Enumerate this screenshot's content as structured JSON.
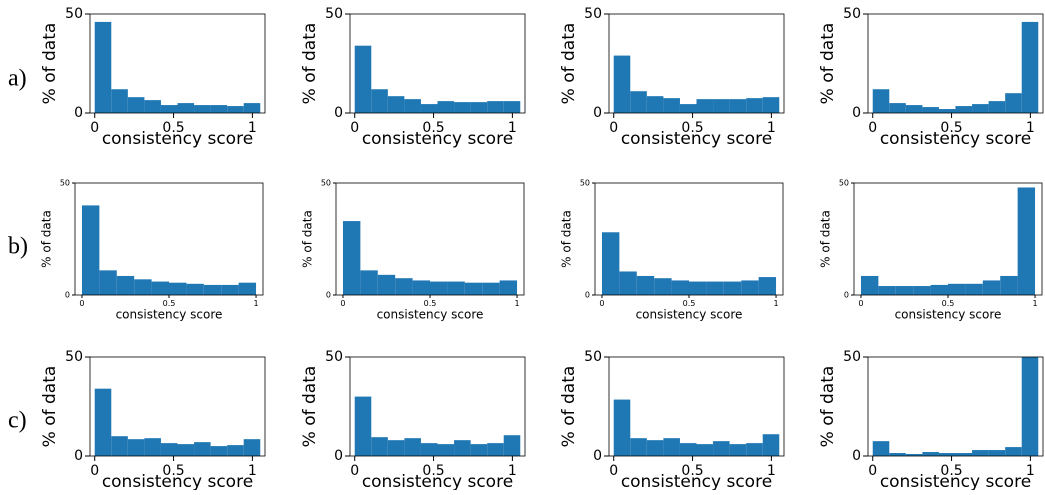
{
  "row_labels": [
    "a)",
    "b)",
    "c)"
  ],
  "chart_data": [
    {
      "type": "histogram",
      "bins": [
        0,
        0.105,
        0.21,
        0.315,
        0.42,
        0.525,
        0.63,
        0.735,
        0.84,
        0.945,
        1.05
      ],
      "values": [
        46,
        12,
        8,
        6.5,
        4,
        5,
        4,
        4,
        3.5,
        5
      ],
      "color": "#1f77b4",
      "xlim": [
        -0.03,
        1.08
      ],
      "ylim": [
        0,
        50
      ],
      "xticks": [
        0,
        0.5,
        1
      ],
      "yticks": [
        0,
        50
      ],
      "xlabel": "consistency score",
      "ylabel": "% of data"
    },
    {
      "type": "histogram",
      "bins": [
        0,
        0.105,
        0.21,
        0.315,
        0.42,
        0.525,
        0.63,
        0.735,
        0.84,
        0.945,
        1.05
      ],
      "values": [
        34,
        12,
        8.5,
        7,
        4.5,
        6,
        5.5,
        5.5,
        6,
        6
      ],
      "color": "#1f77b4",
      "xlim": [
        -0.03,
        1.08
      ],
      "ylim": [
        0,
        50
      ],
      "xticks": [
        0,
        0.5,
        1
      ],
      "yticks": [
        0,
        50
      ],
      "xlabel": "consistency score",
      "ylabel": "% of data"
    },
    {
      "type": "histogram",
      "bins": [
        0,
        0.105,
        0.21,
        0.315,
        0.42,
        0.525,
        0.63,
        0.735,
        0.84,
        0.945,
        1.05
      ],
      "values": [
        29,
        11,
        8.5,
        7.5,
        4.5,
        7,
        7,
        7,
        7.5,
        8
      ],
      "color": "#1f77b4",
      "xlim": [
        -0.03,
        1.08
      ],
      "ylim": [
        0,
        50
      ],
      "xticks": [
        0,
        0.5,
        1
      ],
      "yticks": [
        0,
        50
      ],
      "xlabel": "consistency score",
      "ylabel": "% of data"
    },
    {
      "type": "histogram",
      "bins": [
        0,
        0.105,
        0.21,
        0.315,
        0.42,
        0.525,
        0.63,
        0.735,
        0.84,
        0.945,
        1.05
      ],
      "values": [
        12,
        5,
        4,
        3,
        2,
        3.5,
        4.5,
        6,
        10,
        46
      ],
      "color": "#1f77b4",
      "xlim": [
        -0.03,
        1.08
      ],
      "ylim": [
        0,
        50
      ],
      "xticks": [
        0,
        0.5,
        1
      ],
      "yticks": [
        0,
        50
      ],
      "xlabel": "consistency score",
      "ylabel": "% of data"
    },
    {
      "type": "histogram",
      "bins": [
        0,
        0.1,
        0.2,
        0.3,
        0.4,
        0.5,
        0.6,
        0.7,
        0.8,
        0.9,
        1
      ],
      "values": [
        40,
        11,
        8.5,
        7,
        6,
        5.5,
        5,
        4.5,
        4.5,
        5.5
      ],
      "color": "#1f77b4",
      "xlim": [
        -0.04,
        1.04
      ],
      "ylim": [
        0,
        50
      ],
      "xticks": [
        0,
        0.5,
        1
      ],
      "yticks": [
        0,
        50
      ],
      "xlabel": "consistency score",
      "ylabel": "% of data"
    },
    {
      "type": "histogram",
      "bins": [
        0,
        0.1,
        0.2,
        0.3,
        0.4,
        0.5,
        0.6,
        0.7,
        0.8,
        0.9,
        1
      ],
      "values": [
        33,
        11,
        9,
        7.5,
        6.5,
        6,
        6,
        5.5,
        5.5,
        6.5
      ],
      "color": "#1f77b4",
      "xlim": [
        -0.04,
        1.04
      ],
      "ylim": [
        0,
        50
      ],
      "xticks": [
        0,
        0.5,
        1
      ],
      "yticks": [
        0,
        50
      ],
      "xlabel": "consistency score",
      "ylabel": "% of data"
    },
    {
      "type": "histogram",
      "bins": [
        0,
        0.1,
        0.2,
        0.3,
        0.4,
        0.5,
        0.6,
        0.7,
        0.8,
        0.9,
        1
      ],
      "values": [
        28,
        10.5,
        8.5,
        7.5,
        6.5,
        6,
        6,
        6,
        6.5,
        8
      ],
      "color": "#1f77b4",
      "xlim": [
        -0.04,
        1.04
      ],
      "ylim": [
        0,
        50
      ],
      "xticks": [
        0,
        0.5,
        1
      ],
      "yticks": [
        0,
        50
      ],
      "xlabel": "consistency score",
      "ylabel": "% of data"
    },
    {
      "type": "histogram",
      "bins": [
        0,
        0.1,
        0.2,
        0.3,
        0.4,
        0.5,
        0.6,
        0.7,
        0.8,
        0.9,
        1
      ],
      "values": [
        8.5,
        4,
        4,
        4,
        4.5,
        5,
        5,
        6.5,
        8.5,
        48
      ],
      "color": "#1f77b4",
      "xlim": [
        -0.04,
        1.04
      ],
      "ylim": [
        0,
        50
      ],
      "xticks": [
        0,
        0.5,
        1
      ],
      "yticks": [
        0,
        50
      ],
      "xlabel": "consistency score",
      "ylabel": "% of data"
    },
    {
      "type": "histogram",
      "bins": [
        0,
        0.105,
        0.21,
        0.315,
        0.42,
        0.525,
        0.63,
        0.735,
        0.84,
        0.945,
        1.05
      ],
      "values": [
        34,
        10,
        8.5,
        9,
        6.5,
        6,
        7,
        5,
        5.5,
        8.5
      ],
      "color": "#1f77b4",
      "xlim": [
        -0.03,
        1.08
      ],
      "ylim": [
        0,
        50
      ],
      "xticks": [
        0,
        0.5,
        1
      ],
      "yticks": [
        0,
        50
      ],
      "xlabel": "consistency score",
      "ylabel": "% of data"
    },
    {
      "type": "histogram",
      "bins": [
        0,
        0.105,
        0.21,
        0.315,
        0.42,
        0.525,
        0.63,
        0.735,
        0.84,
        0.945,
        1.05
      ],
      "values": [
        30,
        9.5,
        8,
        9,
        6.5,
        6,
        8,
        6,
        6.5,
        10.5
      ],
      "color": "#1f77b4",
      "xlim": [
        -0.03,
        1.08
      ],
      "ylim": [
        0,
        50
      ],
      "xticks": [
        0,
        0.5,
        1
      ],
      "yticks": [
        0,
        50
      ],
      "xlabel": "consistency score",
      "ylabel": "% of data"
    },
    {
      "type": "histogram",
      "bins": [
        0,
        0.105,
        0.21,
        0.315,
        0.42,
        0.525,
        0.63,
        0.735,
        0.84,
        0.945,
        1.05
      ],
      "values": [
        28.5,
        9,
        8,
        9,
        6.5,
        6,
        7.5,
        6,
        6.5,
        11
      ],
      "color": "#1f77b4",
      "xlim": [
        -0.03,
        1.08
      ],
      "ylim": [
        0,
        50
      ],
      "xticks": [
        0,
        0.5,
        1
      ],
      "yticks": [
        0,
        50
      ],
      "xlabel": "consistency score",
      "ylabel": "% of data"
    },
    {
      "type": "histogram",
      "bins": [
        0,
        0.105,
        0.21,
        0.315,
        0.42,
        0.525,
        0.63,
        0.735,
        0.84,
        0.945,
        1.05
      ],
      "values": [
        7.5,
        1.5,
        1,
        2,
        1.5,
        1.5,
        3,
        3,
        4.5,
        50
      ],
      "color": "#1f77b4",
      "xlim": [
        -0.03,
        1.08
      ],
      "ylim": [
        0,
        50
      ],
      "xticks": [
        0,
        0.5,
        1
      ],
      "yticks": [
        0,
        50
      ],
      "xlabel": "consistency score",
      "ylabel": "% of data"
    }
  ]
}
